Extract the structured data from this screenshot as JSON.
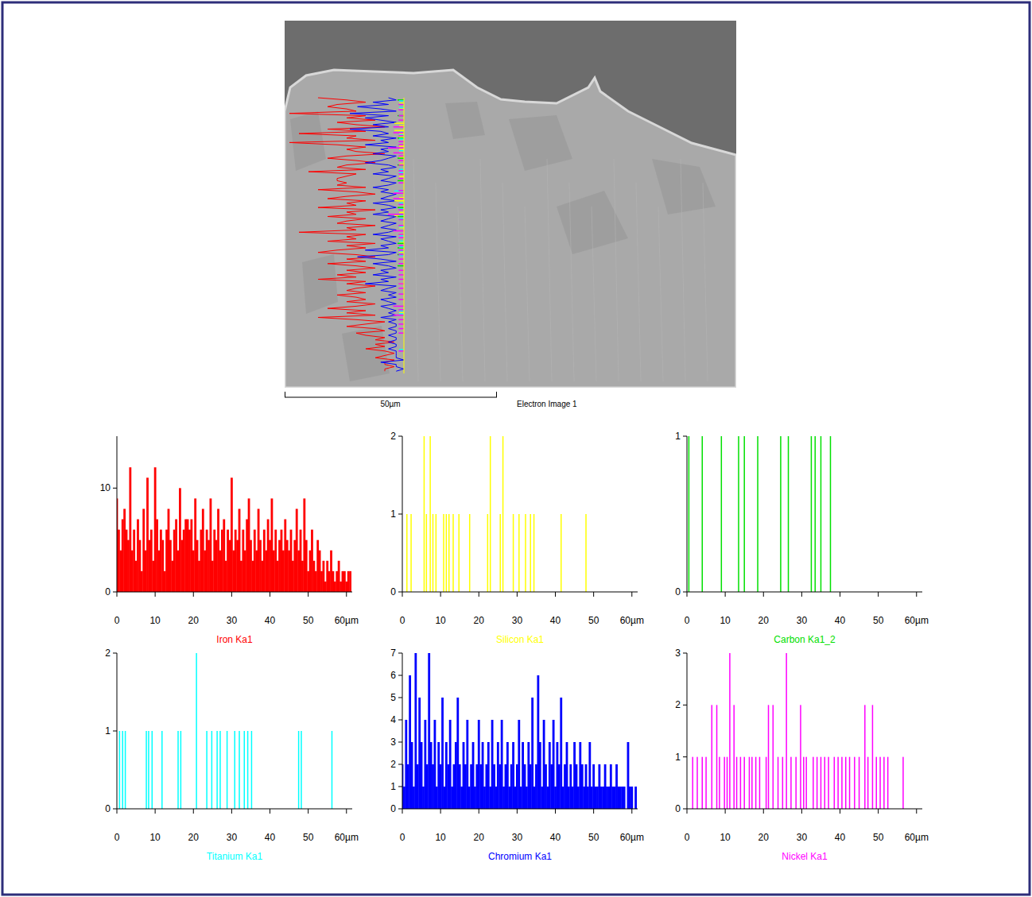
{
  "electron_image": {
    "scale_bar": "50µm",
    "caption": "Electron Image 1"
  },
  "chart_data": [
    {
      "type": "bar",
      "title": "Iron Ka1",
      "color": "#ff0000",
      "x": [
        0,
        0.5,
        1,
        1.5,
        2,
        2.5,
        3,
        3.5,
        4,
        4.5,
        5,
        5.5,
        6,
        6.5,
        7,
        7.5,
        8,
        8.5,
        9,
        9.5,
        10,
        10.5,
        11,
        11.5,
        12,
        12.5,
        13,
        13.5,
        14,
        14.5,
        15,
        15.5,
        16,
        16.5,
        17,
        17.5,
        18,
        18.5,
        19,
        19.5,
        20,
        20.5,
        21,
        21.5,
        22,
        22.5,
        23,
        23.5,
        24,
        24.5,
        25,
        25.5,
        26,
        26.5,
        27,
        27.5,
        28,
        28.5,
        29,
        29.5,
        30,
        30.5,
        31,
        31.5,
        32,
        32.5,
        33,
        33.5,
        34,
        34.5,
        35,
        35.5,
        36,
        36.5,
        37,
        37.5,
        38,
        38.5,
        39,
        39.5,
        40,
        40.5,
        41,
        41.5,
        42,
        42.5,
        43,
        43.5,
        44,
        44.5,
        45,
        45.5,
        46,
        46.5,
        47,
        47.5,
        48,
        48.5,
        49,
        49.5,
        50,
        50.5,
        51,
        51.5,
        52,
        52.5,
        53,
        53.5,
        54,
        54.5,
        55,
        55.5,
        56,
        56.5,
        57,
        57.5,
        58,
        58.5,
        59,
        59.5,
        60,
        60.5,
        61
      ],
      "values": [
        9,
        6,
        4,
        7,
        8,
        6,
        5,
        12,
        4,
        6,
        3,
        7,
        5,
        2,
        8,
        4,
        11,
        5,
        6,
        3,
        12,
        7,
        4,
        6,
        5,
        2,
        6,
        8,
        5,
        3,
        6,
        7,
        4,
        10,
        5,
        6,
        7,
        7,
        6,
        7,
        4,
        9,
        5,
        3,
        6,
        8,
        4,
        6,
        5,
        9,
        3,
        6,
        5,
        8,
        4,
        6,
        7,
        3,
        6,
        5,
        11,
        4,
        6,
        5,
        8,
        3,
        6,
        4,
        7,
        9,
        5,
        3,
        6,
        4,
        8,
        5,
        3,
        6,
        4,
        7,
        5,
        9,
        4,
        6,
        3,
        5,
        6,
        4,
        7,
        5,
        4,
        6,
        3,
        5,
        8,
        4,
        6,
        3,
        9,
        5,
        2,
        4,
        6,
        3,
        2,
        5,
        4,
        2,
        3,
        1,
        3,
        2,
        4,
        2,
        1,
        2,
        3,
        1,
        2,
        2,
        1,
        2,
        2
      ],
      "xlim": [
        0,
        61.5
      ],
      "ylim": [
        0,
        15
      ],
      "xticks": [
        0,
        10,
        20,
        30,
        40,
        50,
        {
          "value": 60,
          "label": "60µm"
        }
      ],
      "yticks": [
        0,
        10
      ]
    },
    {
      "type": "bar",
      "title": "Silicon Ka1",
      "color": "#ffff00",
      "x": [
        1.2,
        2.3,
        5.7,
        6.3,
        7.3,
        8,
        8.8,
        10.8,
        11.5,
        12.2,
        13.3,
        14.8,
        17.6,
        22.3,
        23,
        25.6,
        26.3,
        29,
        30.5,
        32.2,
        33.5,
        34.4,
        41.5,
        48
      ],
      "values": [
        1,
        1,
        2,
        1,
        2,
        1,
        1,
        1,
        1,
        1,
        1,
        1,
        1,
        1,
        2,
        1,
        2,
        1,
        1,
        1,
        1,
        1,
        1,
        1
      ],
      "xlim": [
        0,
        61.5
      ],
      "ylim": [
        0,
        2
      ],
      "xticks": [
        0,
        10,
        20,
        30,
        40,
        50,
        {
          "value": 60,
          "label": "60µm"
        }
      ],
      "yticks": [
        0,
        1,
        2
      ]
    },
    {
      "type": "bar",
      "title": "Carbon Ka1_2",
      "color": "#00e000",
      "x": [
        0.5,
        4,
        9,
        13.5,
        15,
        18.5,
        24.5,
        26.5,
        32.5,
        33.5,
        35,
        37.5
      ],
      "values": [
        1,
        1,
        1,
        1,
        1,
        1,
        1,
        1,
        1,
        1,
        1,
        1
      ],
      "xlim": [
        0,
        61.5
      ],
      "ylim": [
        0,
        1
      ],
      "xticks": [
        0,
        10,
        20,
        30,
        40,
        50,
        {
          "value": 60,
          "label": "60µm"
        }
      ],
      "yticks": [
        0,
        1
      ]
    },
    {
      "type": "bar",
      "title": "Titanium Ka1",
      "color": "#00ffff",
      "x": [
        0.7,
        1.5,
        2.2,
        7.7,
        8.3,
        9.2,
        11.8,
        16,
        16.7,
        20.8,
        23.5,
        24.8,
        26.2,
        27,
        28.8,
        30.8,
        32,
        33.3,
        34.2,
        35.2,
        47.5,
        48.2,
        56.2
      ],
      "values": [
        1,
        1,
        1,
        1,
        1,
        1,
        1,
        1,
        1,
        2,
        1,
        1,
        1,
        1,
        1,
        1,
        1,
        1,
        1,
        1,
        1,
        1,
        1
      ],
      "xlim": [
        0,
        61.5
      ],
      "ylim": [
        0,
        2
      ],
      "xticks": [
        0,
        10,
        20,
        30,
        40,
        50,
        {
          "value": 60,
          "label": "60µm"
        }
      ],
      "yticks": [
        0,
        1,
        2
      ]
    },
    {
      "type": "bar",
      "title": "Chromium Ka1",
      "color": "#0000ff",
      "x": [
        0,
        0.5,
        1,
        1.5,
        2,
        2.5,
        3,
        3.5,
        4,
        4.5,
        5,
        5.5,
        6,
        6.5,
        7,
        7.5,
        8,
        8.5,
        9,
        9.5,
        10,
        10.5,
        11,
        11.5,
        12,
        12.5,
        13,
        13.5,
        14,
        14.5,
        15,
        15.5,
        16,
        16.5,
        17,
        17.5,
        18,
        18.5,
        19,
        19.5,
        20,
        20.5,
        21,
        21.5,
        22,
        22.5,
        23,
        23.5,
        24,
        24.5,
        25,
        25.5,
        26,
        26.5,
        27,
        27.5,
        28,
        28.5,
        29,
        29.5,
        30,
        30.5,
        31,
        31.5,
        32,
        32.5,
        33,
        33.5,
        34,
        34.5,
        35,
        35.5,
        36,
        36.5,
        37,
        37.5,
        38,
        38.5,
        39,
        39.5,
        40,
        40.5,
        41,
        41.5,
        42,
        42.5,
        43,
        43.5,
        44,
        44.5,
        45,
        45.5,
        46,
        46.5,
        47,
        47.5,
        48,
        48.5,
        49,
        49.5,
        50,
        50.5,
        51,
        51.5,
        52,
        52.5,
        53,
        53.5,
        54,
        54.5,
        55,
        55.5,
        56,
        56.5,
        57,
        57.5,
        58,
        58.5,
        59,
        59.5,
        60,
        60.5,
        61
      ],
      "values": [
        2,
        1,
        4,
        2,
        6,
        3,
        1,
        7,
        2,
        5,
        3,
        1,
        4,
        2,
        7,
        3,
        2,
        4,
        1,
        3,
        2,
        5,
        1,
        3,
        2,
        4,
        1,
        2,
        3,
        5,
        2,
        1,
        3,
        2,
        4,
        1,
        2,
        3,
        1,
        2,
        4,
        2,
        3,
        1,
        2,
        3,
        1,
        4,
        2,
        1,
        3,
        2,
        4,
        1,
        2,
        3,
        1,
        2,
        3,
        1,
        2,
        4,
        1,
        3,
        2,
        1,
        3,
        2,
        5,
        1,
        2,
        6,
        3,
        1,
        4,
        2,
        1,
        3,
        2,
        4,
        1,
        3,
        2,
        5,
        1,
        2,
        3,
        1,
        2,
        1,
        3,
        2,
        1,
        3,
        2,
        1,
        2,
        1,
        3,
        1,
        2,
        1,
        1,
        2,
        1,
        1,
        2,
        1,
        1,
        2,
        1,
        1,
        2,
        1,
        1,
        1,
        1,
        0,
        3,
        1,
        1,
        0,
        1
      ],
      "xlim": [
        0,
        61.5
      ],
      "ylim": [
        0,
        7
      ],
      "xticks": [
        0,
        10,
        20,
        30,
        40,
        50,
        {
          "value": 60,
          "label": "60µm"
        }
      ],
      "yticks": [
        0,
        1,
        2,
        3,
        4,
        5,
        6,
        7
      ]
    },
    {
      "type": "bar",
      "title": "Nickel Ka1",
      "color": "#ff00ff",
      "x": [
        1.5,
        2.7,
        4,
        5,
        6.5,
        7.8,
        8.5,
        9.8,
        10.5,
        11.2,
        12.3,
        13,
        14,
        15,
        16.3,
        17,
        18,
        19,
        20.7,
        21.3,
        22.5,
        23.8,
        25,
        26,
        27.2,
        28.5,
        29.7,
        30.5,
        31.2,
        33,
        34,
        35,
        36,
        37,
        38.5,
        39.5,
        40.5,
        41.5,
        42.5,
        43.8,
        45,
        46.5,
        47.3,
        48.5,
        49.5,
        50.5,
        51.5,
        52.5,
        56.5
      ],
      "values": [
        1,
        1,
        1,
        1,
        2,
        2,
        1,
        1,
        1,
        3,
        2,
        1,
        1,
        1,
        1,
        1,
        1,
        1,
        1,
        2,
        2,
        1,
        1,
        3,
        1,
        1,
        2,
        1,
        1,
        1,
        1,
        1,
        1,
        1,
        1,
        1,
        1,
        1,
        1,
        1,
        1,
        2,
        1,
        2,
        1,
        1,
        1,
        1,
        1
      ],
      "xlim": [
        0,
        61.5
      ],
      "ylim": [
        0,
        3
      ],
      "xticks": [
        0,
        10,
        20,
        30,
        40,
        50,
        {
          "value": 60,
          "label": "60µm"
        }
      ],
      "yticks": [
        0,
        1,
        2,
        3
      ]
    }
  ]
}
